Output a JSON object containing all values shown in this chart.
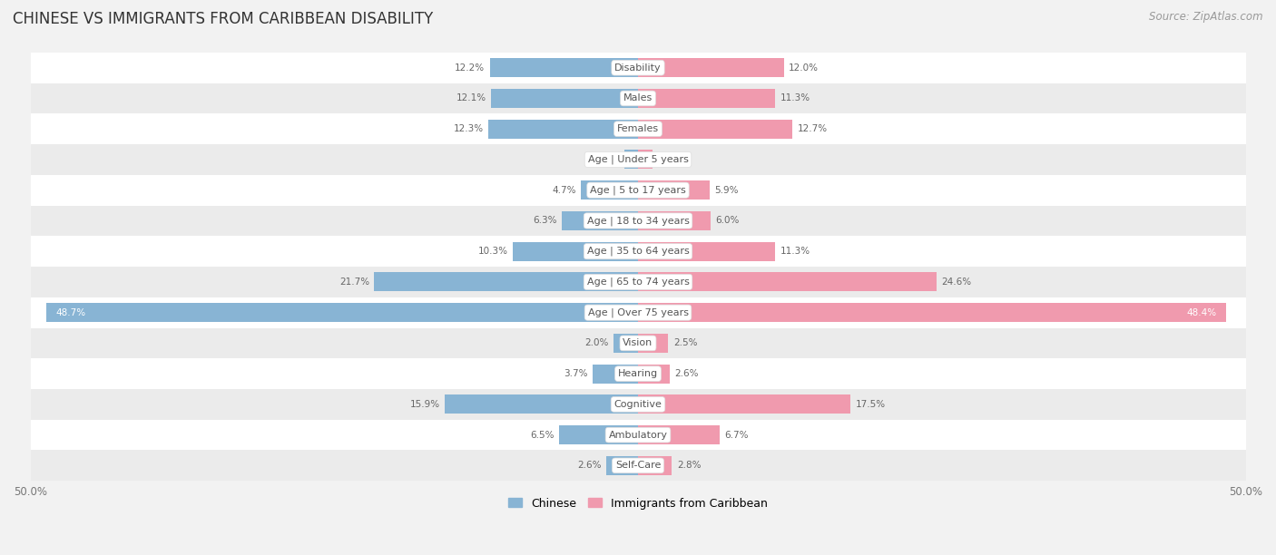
{
  "title": "CHINESE VS IMMIGRANTS FROM CARIBBEAN DISABILITY",
  "source": "Source: ZipAtlas.com",
  "categories": [
    "Disability",
    "Males",
    "Females",
    "Age | Under 5 years",
    "Age | 5 to 17 years",
    "Age | 18 to 34 years",
    "Age | 35 to 64 years",
    "Age | 65 to 74 years",
    "Age | Over 75 years",
    "Vision",
    "Hearing",
    "Cognitive",
    "Ambulatory",
    "Self-Care"
  ],
  "chinese_values": [
    12.2,
    12.1,
    12.3,
    1.1,
    4.7,
    6.3,
    10.3,
    21.7,
    48.7,
    2.0,
    3.7,
    15.9,
    6.5,
    2.6
  ],
  "caribbean_values": [
    12.0,
    11.3,
    12.7,
    1.2,
    5.9,
    6.0,
    11.3,
    24.6,
    48.4,
    2.5,
    2.6,
    17.5,
    6.7,
    2.8
  ],
  "chinese_color": "#88b4d4",
  "caribbean_color": "#f09aae",
  "chinese_label": "Chinese",
  "caribbean_label": "Immigrants from Caribbean",
  "axis_max": 50.0,
  "bg_light": "#f4f4f4",
  "bg_dark": "#e8e8e8",
  "title_fontsize": 12,
  "source_fontsize": 8.5,
  "label_fontsize": 8,
  "value_fontsize": 7.5,
  "bar_height": 0.62,
  "legend_fontsize": 9
}
